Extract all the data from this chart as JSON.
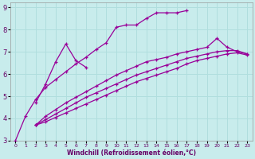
{
  "xlabel": "Windchill (Refroidissement éolien,°C)",
  "bg_color": "#c8ecec",
  "grid_color": "#b0dede",
  "line_color": "#990099",
  "xlim": [
    -0.5,
    23.5
  ],
  "ylim": [
    3,
    9.2
  ],
  "xticks": [
    0,
    1,
    2,
    3,
    4,
    5,
    6,
    7,
    8,
    9,
    10,
    11,
    12,
    13,
    14,
    15,
    16,
    17,
    18,
    19,
    20,
    21,
    22,
    23
  ],
  "yticks": [
    3,
    4,
    5,
    6,
    7,
    8,
    9
  ],
  "series": [
    {
      "x": [
        0,
        1,
        2,
        3,
        4,
        5,
        6,
        7,
        8,
        9,
        10,
        11,
        12,
        13,
        14,
        15,
        16,
        17
      ],
      "y": [
        3.0,
        4.1,
        4.85,
        5.4,
        5.75,
        6.1,
        6.45,
        6.75,
        7.1,
        7.4,
        8.1,
        8.2,
        8.2,
        8.5,
        8.75,
        8.75,
        8.75,
        8.85
      ]
    },
    {
      "x": [
        2,
        3,
        4,
        5,
        6,
        7
      ],
      "y": [
        4.7,
        5.55,
        6.55,
        7.35,
        6.6,
        6.3
      ]
    },
    {
      "x": [
        2,
        3,
        4,
        5,
        6,
        7,
        8,
        9,
        10,
        11,
        12,
        13,
        14,
        15,
        16,
        17,
        18,
        19,
        20,
        21,
        22,
        23
      ],
      "y": [
        3.7,
        4.1,
        4.4,
        4.7,
        4.95,
        5.2,
        5.45,
        5.7,
        5.95,
        6.15,
        6.35,
        6.55,
        6.65,
        6.75,
        6.9,
        7.0,
        7.1,
        7.2,
        7.6,
        7.2,
        7.0,
        6.9
      ]
    },
    {
      "x": [
        2,
        3,
        4,
        5,
        6,
        7,
        8,
        9,
        10,
        11,
        12,
        13,
        14,
        15,
        16,
        17,
        18,
        19,
        20,
        21,
        22,
        23
      ],
      "y": [
        3.7,
        3.95,
        4.2,
        4.45,
        4.7,
        4.95,
        5.15,
        5.35,
        5.55,
        5.75,
        5.95,
        6.1,
        6.25,
        6.4,
        6.55,
        6.7,
        6.8,
        6.9,
        7.0,
        7.05,
        7.05,
        6.9
      ]
    },
    {
      "x": [
        2,
        3,
        4,
        5,
        6,
        7,
        8,
        9,
        10,
        11,
        12,
        13,
        14,
        15,
        16,
        17,
        18,
        19,
        20,
        21,
        22,
        23
      ],
      "y": [
        3.7,
        3.85,
        4.05,
        4.25,
        4.45,
        4.65,
        4.85,
        5.05,
        5.25,
        5.45,
        5.65,
        5.8,
        5.95,
        6.1,
        6.25,
        6.45,
        6.6,
        6.7,
        6.8,
        6.9,
        6.95,
        6.85
      ]
    }
  ]
}
